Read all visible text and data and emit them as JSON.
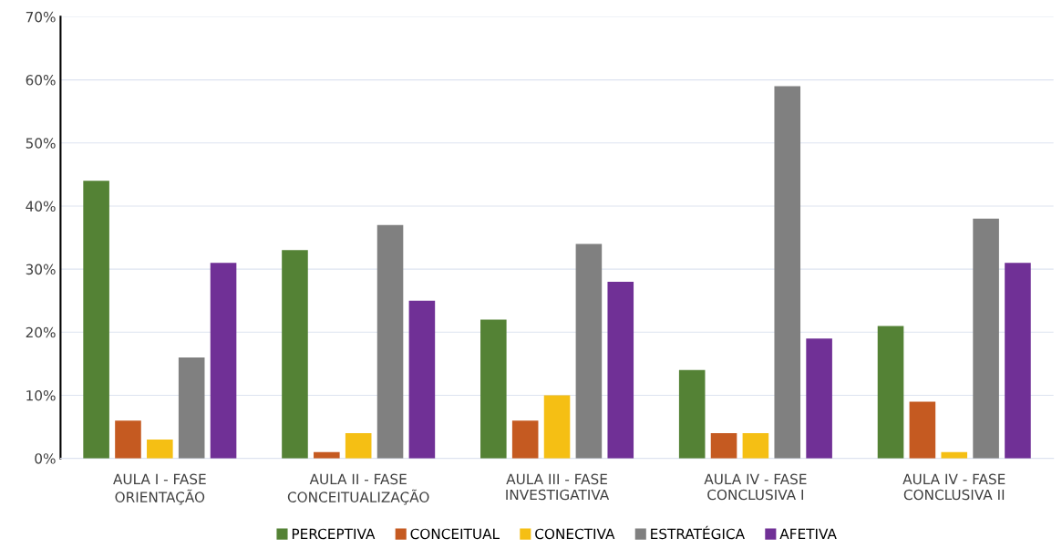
{
  "chart_data": {
    "type": "bar",
    "categories": [
      "AULA I - FASE\nORIENTAÇÃO",
      "AULA II - FASE\nCONCEITUALIZAÇÃO",
      "AULA III - FASE\nINVESTIGATIVA",
      "AULA IV - FASE\nCONCLUSIVA I",
      "AULA IV - FASE\nCONCLUSIVA II"
    ],
    "series": [
      {
        "name": "PERCEPTIVA",
        "color": "#548235",
        "values": [
          44,
          33,
          22,
          14,
          21
        ]
      },
      {
        "name": "CONCEITUAL",
        "color": "#c55a21",
        "values": [
          6,
          1,
          6,
          4,
          9
        ]
      },
      {
        "name": "CONECTIVA",
        "color": "#f5bf14",
        "values": [
          3,
          4,
          10,
          4,
          1
        ]
      },
      {
        "name": "ESTRATÉGICA",
        "color": "#808080",
        "values": [
          16,
          37,
          34,
          59,
          38
        ]
      },
      {
        "name": "AFETIVA",
        "color": "#703096",
        "values": [
          31,
          25,
          28,
          19,
          31
        ]
      }
    ],
    "ylim": [
      0,
      70
    ],
    "yticks": [
      {
        "value": 0,
        "label": "0%"
      },
      {
        "value": 10,
        "label": "10%"
      },
      {
        "value": 20,
        "label": "20%"
      },
      {
        "value": 30,
        "label": "30%"
      },
      {
        "value": 40,
        "label": "40%"
      },
      {
        "value": 50,
        "label": "50%"
      },
      {
        "value": 60,
        "label": "60%"
      },
      {
        "value": 70,
        "label": "70%"
      }
    ],
    "grid": "y",
    "legend": "bottom"
  }
}
